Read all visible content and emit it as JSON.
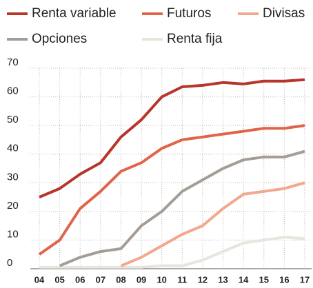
{
  "chart_data": {
    "type": "line",
    "categories": [
      "04",
      "05",
      "06",
      "07",
      "08",
      "09",
      "10",
      "11",
      "12",
      "13",
      "14",
      "15",
      "16",
      "17"
    ],
    "series": [
      {
        "name": "Renta variable",
        "color": "#b8352b",
        "values": [
          25,
          28,
          33,
          37,
          46,
          52,
          60,
          63.5,
          64,
          65,
          64.5,
          65.5,
          65.5,
          66
        ]
      },
      {
        "name": "Futuros",
        "color": "#e0644a",
        "values": [
          5,
          10,
          21,
          27,
          34,
          37,
          42,
          45,
          46,
          47,
          48,
          49,
          49,
          50
        ]
      },
      {
        "name": "Divisas",
        "color": "#f2a88d",
        "values": [
          null,
          null,
          null,
          null,
          1,
          4,
          8,
          12,
          15,
          21,
          26,
          27,
          28,
          30
        ]
      },
      {
        "name": "Opciones",
        "color": "#a49d96",
        "values": [
          null,
          1,
          4,
          6,
          7,
          15,
          20,
          27,
          31,
          35,
          38,
          39,
          39,
          41
        ]
      },
      {
        "name": "Renta fija",
        "color": "#e8e4de",
        "values": [
          0.5,
          0.5,
          0.5,
          0.5,
          0.5,
          0.5,
          1,
          1,
          3,
          6,
          9,
          10,
          11,
          10.5
        ]
      }
    ],
    "ylim": [
      0,
      70
    ],
    "yticks": [
      0,
      10,
      20,
      30,
      40,
      50,
      60,
      70
    ],
    "grid": true
  }
}
